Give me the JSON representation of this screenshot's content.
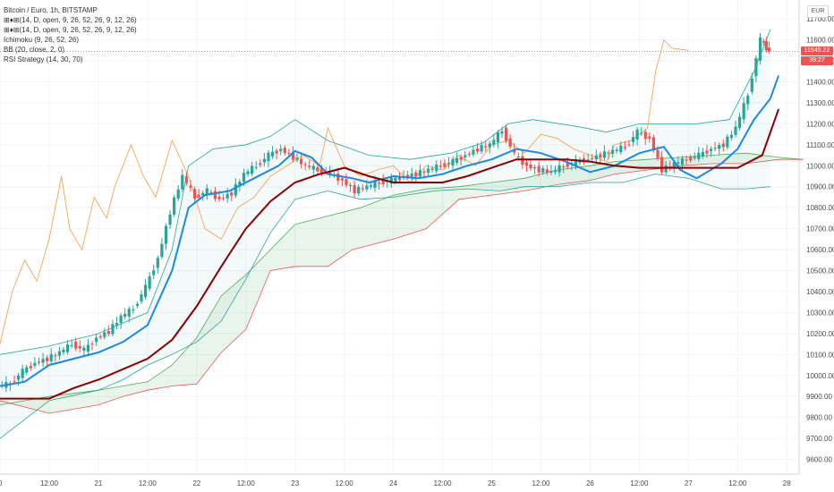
{
  "legend": {
    "title": "Bitcoin / Euro, 1h, BITSTAMP",
    "line1": "(14, D, open, 9, 26, 52, 26, 9, 12, 26)",
    "line2": "(14, D, open, 9, 26, 52, 26, 9, 12, 26)",
    "line3": "Ichimoku (9, 26, 52, 26)",
    "line4": "BB (20, close, 2, 0)",
    "line5": "RSI Strategy (14, 30, 70)"
  },
  "currency_button": "EUR",
  "price_tags": {
    "last_price": "11545.22",
    "countdown": "39:27"
  },
  "colors": {
    "candle_up": "#26a69a",
    "candle_down": "#ef5350",
    "fast_line": "#1e88e5",
    "slow_line": "#8b0000",
    "bb_band": "#26a69a",
    "rsi_line": "#f59a3a",
    "cloud_green": "#4caf50",
    "cloud_red": "#ef5350",
    "price_tag": "#ef5350"
  },
  "chart_data": {
    "type": "candlestick",
    "title": "Bitcoin / Euro, 1h, BITSTAMP",
    "y_axis": {
      "ticks": [
        9600,
        9700,
        9800,
        9900,
        10000,
        10100,
        10200,
        10300,
        10400,
        10500,
        10600,
        10700,
        10800,
        10900,
        11000,
        11100,
        11200,
        11300,
        11400,
        11500,
        11600,
        11700
      ],
      "ylim": [
        9530,
        11790
      ]
    },
    "x_axis": {
      "tick_labels": [
        "0",
        "12:00",
        "21",
        "12:00",
        "22",
        "12:00",
        "23",
        "12:00",
        "24",
        "12:00",
        "25",
        "12:00",
        "26",
        "12:00",
        "27",
        "12:00",
        "28"
      ],
      "tick_hours": [
        0,
        12,
        24,
        36,
        48,
        60,
        72,
        84,
        96,
        108,
        120,
        132,
        144,
        156,
        168,
        180,
        192
      ],
      "xlim": [
        0,
        195
      ]
    },
    "close_series": [
      [
        0,
        9950
      ],
      [
        3,
        9960
      ],
      [
        6,
        10020
      ],
      [
        9,
        10060
      ],
      [
        12,
        10080
      ],
      [
        15,
        10110
      ],
      [
        18,
        10150
      ],
      [
        21,
        10120
      ],
      [
        24,
        10180
      ],
      [
        27,
        10210
      ],
      [
        30,
        10280
      ],
      [
        33,
        10320
      ],
      [
        36,
        10420
      ],
      [
        39,
        10560
      ],
      [
        42,
        10780
      ],
      [
        45,
        10950
      ],
      [
        48,
        10850
      ],
      [
        51,
        10880
      ],
      [
        54,
        10840
      ],
      [
        57,
        10870
      ],
      [
        60,
        10960
      ],
      [
        63,
        11000
      ],
      [
        66,
        11050
      ],
      [
        69,
        11080
      ],
      [
        72,
        11040
      ],
      [
        75,
        11000
      ],
      [
        78,
        10980
      ],
      [
        81,
        10960
      ],
      [
        84,
        10930
      ],
      [
        87,
        10880
      ],
      [
        90,
        10900
      ],
      [
        93,
        10920
      ],
      [
        96,
        10930
      ],
      [
        99,
        10950
      ],
      [
        102,
        10960
      ],
      [
        105,
        10980
      ],
      [
        108,
        11000
      ],
      [
        111,
        11020
      ],
      [
        114,
        11050
      ],
      [
        117,
        11080
      ],
      [
        120,
        11100
      ],
      [
        123,
        11170
      ],
      [
        126,
        11050
      ],
      [
        129,
        11000
      ],
      [
        132,
        10980
      ],
      [
        135,
        10970
      ],
      [
        138,
        11000
      ],
      [
        141,
        11020
      ],
      [
        144,
        11030
      ],
      [
        147,
        11050
      ],
      [
        150,
        11070
      ],
      [
        153,
        11090
      ],
      [
        156,
        11160
      ],
      [
        159,
        11130
      ],
      [
        162,
        10980
      ],
      [
        165,
        11010
      ],
      [
        168,
        11030
      ],
      [
        171,
        11050
      ],
      [
        174,
        11080
      ],
      [
        177,
        11100
      ],
      [
        180,
        11180
      ],
      [
        183,
        11340
      ],
      [
        186,
        11600
      ],
      [
        188,
        11545
      ]
    ],
    "fast_line": [
      [
        0,
        9950
      ],
      [
        6,
        9970
      ],
      [
        12,
        10050
      ],
      [
        18,
        10080
      ],
      [
        24,
        10110
      ],
      [
        30,
        10160
      ],
      [
        36,
        10240
      ],
      [
        42,
        10500
      ],
      [
        46,
        10800
      ],
      [
        50,
        10860
      ],
      [
        56,
        10880
      ],
      [
        62,
        10940
      ],
      [
        68,
        11000
      ],
      [
        72,
        11070
      ],
      [
        76,
        11040
      ],
      [
        80,
        10960
      ],
      [
        86,
        10940
      ],
      [
        90,
        10920
      ],
      [
        96,
        10950
      ],
      [
        102,
        10940
      ],
      [
        108,
        10960
      ],
      [
        114,
        11000
      ],
      [
        120,
        11030
      ],
      [
        126,
        11080
      ],
      [
        132,
        11060
      ],
      [
        138,
        11020
      ],
      [
        144,
        10970
      ],
      [
        150,
        11000
      ],
      [
        156,
        11060
      ],
      [
        162,
        11090
      ],
      [
        166,
        10980
      ],
      [
        170,
        10940
      ],
      [
        176,
        11010
      ],
      [
        180,
        11080
      ],
      [
        184,
        11220
      ],
      [
        188,
        11320
      ],
      [
        190,
        11430
      ]
    ],
    "slow_line": [
      [
        0,
        9890
      ],
      [
        12,
        9890
      ],
      [
        18,
        9940
      ],
      [
        24,
        9980
      ],
      [
        30,
        10030
      ],
      [
        36,
        10080
      ],
      [
        42,
        10170
      ],
      [
        48,
        10330
      ],
      [
        54,
        10520
      ],
      [
        60,
        10700
      ],
      [
        66,
        10830
      ],
      [
        72,
        10920
      ],
      [
        78,
        10960
      ],
      [
        84,
        10990
      ],
      [
        90,
        10950
      ],
      [
        96,
        10920
      ],
      [
        102,
        10920
      ],
      [
        108,
        10920
      ],
      [
        114,
        10950
      ],
      [
        120,
        10990
      ],
      [
        126,
        11030
      ],
      [
        132,
        11030
      ],
      [
        138,
        11030
      ],
      [
        144,
        11020
      ],
      [
        150,
        11000
      ],
      [
        156,
        10990
      ],
      [
        162,
        10990
      ],
      [
        168,
        10990
      ],
      [
        174,
        10990
      ],
      [
        180,
        10990
      ],
      [
        186,
        11050
      ],
      [
        190,
        11270
      ]
    ],
    "bb_upper": [
      [
        0,
        10100
      ],
      [
        12,
        10140
      ],
      [
        24,
        10200
      ],
      [
        36,
        10300
      ],
      [
        42,
        10600
      ],
      [
        46,
        11000
      ],
      [
        52,
        11080
      ],
      [
        60,
        11100
      ],
      [
        66,
        11140
      ],
      [
        72,
        11220
      ],
      [
        80,
        11120
      ],
      [
        90,
        11050
      ],
      [
        100,
        11030
      ],
      [
        110,
        11060
      ],
      [
        118,
        11110
      ],
      [
        124,
        11200
      ],
      [
        130,
        11220
      ],
      [
        140,
        11190
      ],
      [
        148,
        11160
      ],
      [
        156,
        11200
      ],
      [
        162,
        11200
      ],
      [
        170,
        11200
      ],
      [
        178,
        11220
      ],
      [
        184,
        11450
      ],
      [
        188,
        11650
      ]
    ],
    "bb_lower": [
      [
        0,
        9700
      ],
      [
        12,
        9880
      ],
      [
        24,
        9930
      ],
      [
        30,
        9980
      ],
      [
        36,
        10050
      ],
      [
        42,
        10100
      ],
      [
        48,
        10160
      ],
      [
        54,
        10260
      ],
      [
        60,
        10460
      ],
      [
        66,
        10680
      ],
      [
        72,
        10840
      ],
      [
        80,
        10880
      ],
      [
        88,
        10840
      ],
      [
        96,
        10850
      ],
      [
        106,
        10880
      ],
      [
        114,
        10890
      ],
      [
        122,
        10880
      ],
      [
        128,
        10900
      ],
      [
        136,
        10900
      ],
      [
        144,
        10920
      ],
      [
        152,
        10920
      ],
      [
        160,
        10960
      ],
      [
        168,
        10940
      ],
      [
        176,
        10890
      ],
      [
        182,
        10890
      ],
      [
        188,
        10900
      ]
    ],
    "rsi_line": [
      [
        0,
        10150
      ],
      [
        3,
        10400
      ],
      [
        6,
        10550
      ],
      [
        9,
        10450
      ],
      [
        12,
        10650
      ],
      [
        15,
        10950
      ],
      [
        17,
        10700
      ],
      [
        20,
        10600
      ],
      [
        23,
        10850
      ],
      [
        26,
        10750
      ],
      [
        28,
        10900
      ],
      [
        32,
        11100
      ],
      [
        35,
        10950
      ],
      [
        38,
        10850
      ],
      [
        42,
        11120
      ],
      [
        46,
        10950
      ],
      [
        50,
        10700
      ],
      [
        54,
        10650
      ],
      [
        58,
        10800
      ],
      [
        62,
        10850
      ],
      [
        66,
        10950
      ],
      [
        70,
        11000
      ],
      [
        74,
        11050
      ],
      [
        78,
        11000
      ],
      [
        80,
        11180
      ],
      [
        84,
        11000
      ],
      [
        88,
        10950
      ],
      [
        92,
        10980
      ],
      [
        96,
        11000
      ],
      [
        100,
        10920
      ],
      [
        104,
        11000
      ],
      [
        108,
        10980
      ],
      [
        112,
        11050
      ],
      [
        116,
        11000
      ],
      [
        120,
        11100
      ],
      [
        124,
        11120
      ],
      [
        128,
        11060
      ],
      [
        132,
        11150
      ],
      [
        136,
        11130
      ],
      [
        140,
        11080
      ],
      [
        144,
        11050
      ],
      [
        148,
        11020
      ],
      [
        150,
        11100
      ],
      [
        154,
        11120
      ],
      [
        158,
        11180
      ],
      [
        160,
        11450
      ],
      [
        162,
        11600
      ],
      [
        164,
        11560
      ],
      [
        168,
        11550
      ]
    ],
    "cloud_upper": [
      [
        0,
        9860
      ],
      [
        12,
        9900
      ],
      [
        24,
        9930
      ],
      [
        30,
        9950
      ],
      [
        36,
        9970
      ],
      [
        42,
        10050
      ],
      [
        48,
        10180
      ],
      [
        54,
        10380
      ],
      [
        60,
        10480
      ],
      [
        66,
        10600
      ],
      [
        72,
        10720
      ],
      [
        80,
        10760
      ],
      [
        88,
        10800
      ],
      [
        96,
        10860
      ],
      [
        104,
        10890
      ],
      [
        112,
        10900
      ],
      [
        120,
        10920
      ],
      [
        128,
        10940
      ],
      [
        136,
        10980
      ],
      [
        144,
        11000
      ],
      [
        150,
        11020
      ],
      [
        158,
        11030
      ],
      [
        166,
        11040
      ],
      [
        174,
        11050
      ],
      [
        182,
        11060
      ],
      [
        190,
        11040
      ],
      [
        196,
        11030
      ]
    ],
    "cloud_lower": [
      [
        0,
        9880
      ],
      [
        12,
        9820
      ],
      [
        24,
        9860
      ],
      [
        30,
        9900
      ],
      [
        36,
        9930
      ],
      [
        42,
        9950
      ],
      [
        48,
        9960
      ],
      [
        54,
        10110
      ],
      [
        60,
        10220
      ],
      [
        66,
        10500
      ],
      [
        72,
        10520
      ],
      [
        80,
        10520
      ],
      [
        86,
        10600
      ],
      [
        96,
        10650
      ],
      [
        104,
        10700
      ],
      [
        112,
        10840
      ],
      [
        120,
        10860
      ],
      [
        128,
        10880
      ],
      [
        136,
        10910
      ],
      [
        144,
        10930
      ],
      [
        150,
        10960
      ],
      [
        158,
        10980
      ],
      [
        166,
        11000
      ],
      [
        174,
        11010
      ],
      [
        182,
        11010
      ],
      [
        190,
        11030
      ],
      [
        196,
        11030
      ]
    ],
    "last_price": 11545.22
  }
}
